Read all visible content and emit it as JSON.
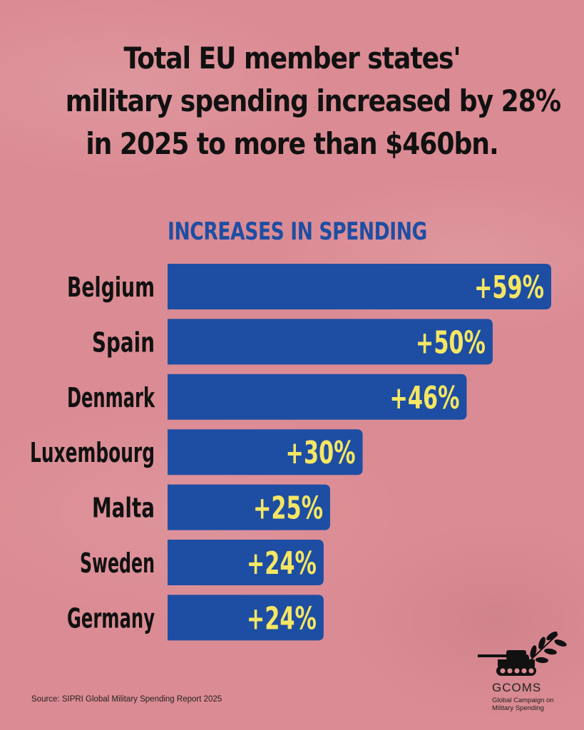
{
  "headline": {
    "line1": "Total EU member states'",
    "line2": "military spending increased by 28%",
    "line3": "in 2025 to more than $460bn."
  },
  "chart_data": {
    "type": "bar",
    "orientation": "horizontal",
    "title": "INCREASES IN SPENDING",
    "categories": [
      "Belgium",
      "Spain",
      "Denmark",
      "Luxembourg",
      "Malta",
      "Sweden",
      "Germany"
    ],
    "values": [
      59,
      50,
      46,
      30,
      25,
      24,
      24
    ],
    "value_labels": [
      "+59%",
      "+50%",
      "+46%",
      "+30%",
      "+25%",
      "+24%",
      "+24%"
    ],
    "unit": "%",
    "xlim": [
      0,
      59
    ],
    "grid": false,
    "colors": {
      "bar": "#1e4ea3",
      "value_text": "#f5e663",
      "category_text": "#111111"
    }
  },
  "footer": {
    "source": "Source: SIPRI Global Military Spending Report 2025"
  },
  "logo": {
    "name": "GCOMS",
    "subtitle": "Global Campaign on Military Spending"
  }
}
